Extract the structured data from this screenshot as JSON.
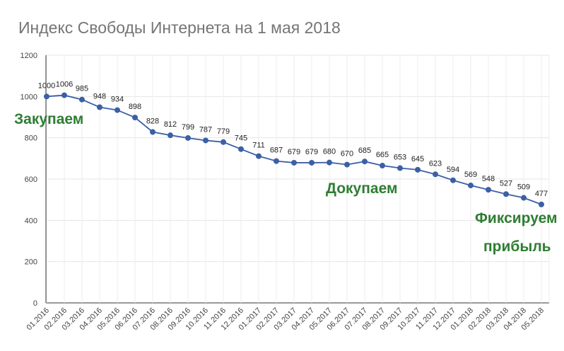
{
  "chart_data": {
    "type": "line",
    "title": "Индекс Свободы Интернета на 1 мая 2018",
    "xlabel": "",
    "ylabel": "",
    "categories": [
      "01.2016",
      "02.2016",
      "03.2016",
      "04.2016",
      "05.2016",
      "06.2016",
      "07.2016",
      "08.2016",
      "09.2016",
      "10.2016",
      "11.2016",
      "12.2016",
      "01.2017",
      "02.2017",
      "03.2017",
      "04.2017",
      "05.2017",
      "06.2017",
      "07.2017",
      "08.2017",
      "09.2017",
      "10.2017",
      "11.2017",
      "12.2017",
      "01.2018",
      "02.2018",
      "03.2018",
      "04.2018",
      "05.2018"
    ],
    "series": [
      {
        "values": [
          1000,
          1006,
          985,
          948,
          934,
          898,
          828,
          812,
          799,
          787,
          779,
          745,
          711,
          687,
          679,
          679,
          680,
          670,
          685,
          665,
          653,
          645,
          623,
          594,
          569,
          548,
          527,
          509,
          477
        ],
        "labels": [
          "1000",
          "1006",
          "985",
          "948",
          "934",
          "898",
          "828",
          "812",
          "799",
          "787",
          "779",
          "745",
          "711",
          "687",
          "679",
          "679",
          "680",
          "670",
          "685",
          "665",
          "653",
          "645",
          "623",
          "594",
          "569",
          "548",
          "527",
          "509",
          "477"
        ],
        "color": "#3c5fa6"
      }
    ],
    "ylim": [
      0,
      1200
    ],
    "yticks": [
      0,
      200,
      400,
      600,
      800,
      1000,
      1200
    ],
    "grid": true,
    "annotations": [
      {
        "text": "Закупаем",
        "color": "#2e7d32"
      },
      {
        "text": "Докупаем",
        "color": "#2e7d32"
      },
      {
        "text": "Фиксируем",
        "color": "#2e7d32"
      },
      {
        "text": "прибыль",
        "color": "#2e7d32"
      }
    ]
  }
}
